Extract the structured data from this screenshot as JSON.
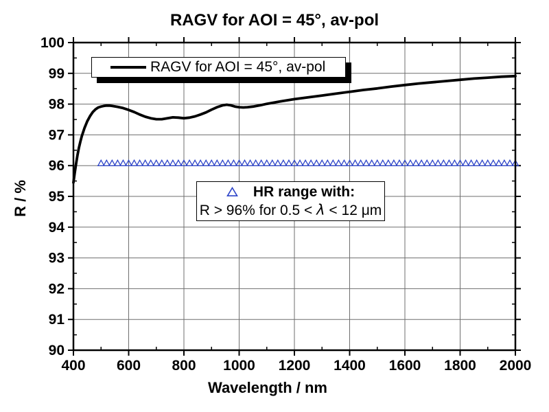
{
  "chart_data": {
    "type": "line",
    "title": "RAGV for AOI = 45°, av-pol",
    "xlabel": "Wavelength / nm",
    "ylabel": "R / %",
    "xlim": [
      400,
      2000
    ],
    "ylim": [
      90,
      100
    ],
    "x_major_step": 200,
    "x_minor_step": 100,
    "y_major_step": 1,
    "y_minor_step": 0.5,
    "grid": true,
    "grid_color": "#6e6e6e",
    "axis_color": "#000000",
    "legend_position": "top-left-inside",
    "series": [
      {
        "name": "RAGV for AOI = 45°, av-pol",
        "type": "line",
        "color": "#000000",
        "line_width": 3.8,
        "x": [
          400,
          405,
          410,
          415,
          420,
          425,
          430,
          440,
          450,
          460,
          470,
          480,
          490,
          500,
          510,
          520,
          530,
          540,
          560,
          580,
          600,
          620,
          640,
          660,
          680,
          700,
          720,
          740,
          760,
          780,
          800,
          820,
          840,
          860,
          880,
          900,
          920,
          940,
          955,
          970,
          985,
          1000,
          1015,
          1030,
          1050,
          1075,
          1100,
          1150,
          1200,
          1250,
          1300,
          1350,
          1400,
          1450,
          1500,
          1550,
          1600,
          1650,
          1700,
          1750,
          1800,
          1850,
          1900,
          1950,
          2000
        ],
        "y": [
          95.45,
          95.78,
          96.08,
          96.35,
          96.58,
          96.78,
          96.95,
          97.22,
          97.44,
          97.61,
          97.74,
          97.83,
          97.89,
          97.92,
          97.94,
          97.95,
          97.95,
          97.94,
          97.91,
          97.87,
          97.81,
          97.74,
          97.66,
          97.59,
          97.54,
          97.51,
          97.51,
          97.54,
          97.57,
          97.56,
          97.54,
          97.56,
          97.6,
          97.66,
          97.73,
          97.82,
          97.9,
          97.96,
          97.98,
          97.96,
          97.92,
          97.9,
          97.89,
          97.9,
          97.92,
          97.96,
          98.01,
          98.09,
          98.16,
          98.22,
          98.28,
          98.34,
          98.4,
          98.46,
          98.51,
          98.57,
          98.62,
          98.67,
          98.71,
          98.75,
          98.79,
          98.83,
          98.86,
          98.89,
          98.91
        ]
      },
      {
        "name": "HR range markers",
        "type": "scatter",
        "marker": "open-triangle-up",
        "color": "#2c43c8",
        "marker_size": 9,
        "x_start": 500,
        "x_end": 2000,
        "x_step": 20,
        "y_value": 96.07
      }
    ],
    "legend": {
      "label": "RAGV for AOI = 45°, av-pol"
    },
    "annotation": {
      "marker": "open-triangle-up",
      "line1": "HR range with:",
      "line2_parts": [
        "R > 96% for 0.5 < ",
        "λ",
        " < 12 μm"
      ]
    }
  }
}
